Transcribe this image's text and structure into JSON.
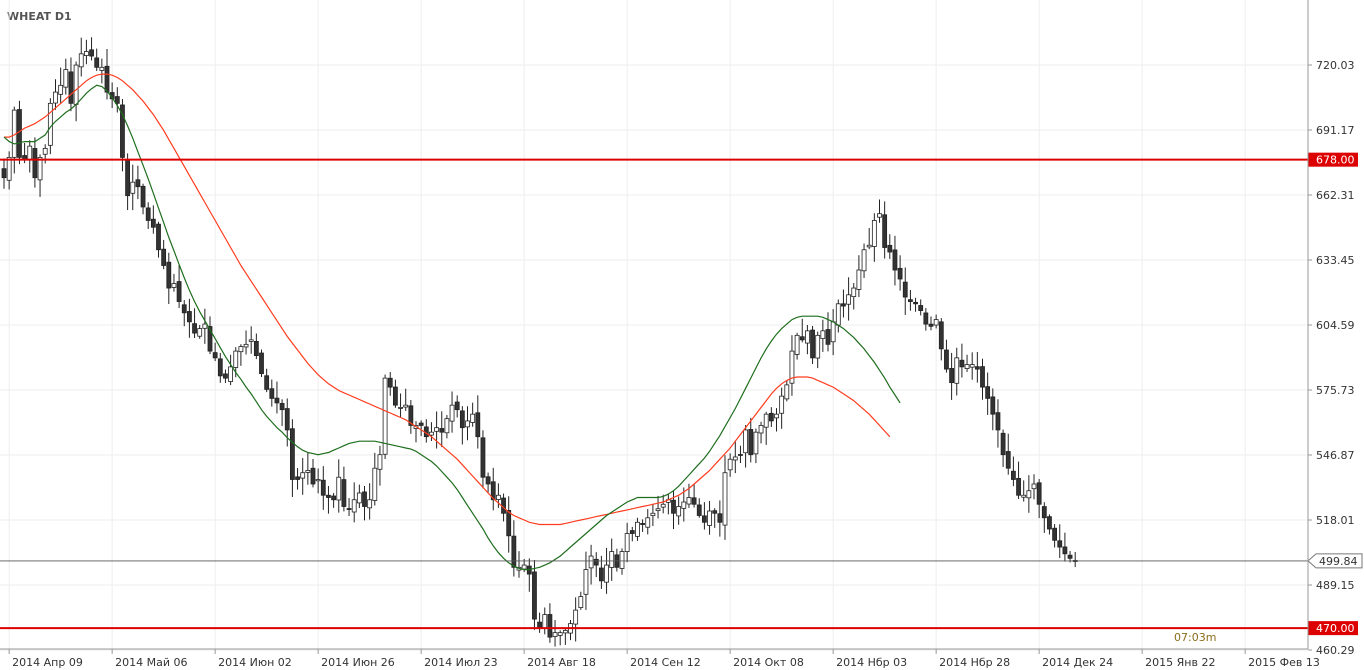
{
  "chart_data": {
    "type": "candlestick",
    "title": "WHEAT D1",
    "ylim": [
      455,
      735
    ],
    "y_ticks": [
      {
        "value": 720.03,
        "label": "720.03"
      },
      {
        "value": 691.17,
        "label": "691.17"
      },
      {
        "value": 662.31,
        "label": "662.31"
      },
      {
        "value": 633.45,
        "label": "633.45"
      },
      {
        "value": 604.59,
        "label": "604.59"
      },
      {
        "value": 575.73,
        "label": "575.73"
      },
      {
        "value": 546.87,
        "label": "546.87"
      },
      {
        "value": 518.01,
        "label": "518.01"
      },
      {
        "value": 489.15,
        "label": "489.15"
      },
      {
        "value": 460.29,
        "label": "460.29"
      }
    ],
    "x_labels": [
      {
        "bar": 1,
        "label": "2014 Апр 09"
      },
      {
        "bar": 21,
        "label": "2014 Май 06"
      },
      {
        "bar": 41,
        "label": "2014 Июн 02"
      },
      {
        "bar": 61,
        "label": "2014 Июн 26"
      },
      {
        "bar": 81,
        "label": "2014 Июл 23"
      },
      {
        "bar": 101,
        "label": "2014 Авг 18"
      },
      {
        "bar": 121,
        "label": "2014 Сен 12"
      },
      {
        "bar": 141,
        "label": "2014 Окт 08"
      },
      {
        "bar": 161,
        "label": "2014 Нбр 03"
      },
      {
        "bar": 181,
        "label": "2014 Нбр 28"
      },
      {
        "bar": 201,
        "label": "2014 Дек 24"
      },
      {
        "bar": 221,
        "label": "2015 Янв 22"
      },
      {
        "bar": 241,
        "label": "2015 Фев 13"
      }
    ],
    "x_range": [
      0,
      254
    ],
    "horizontal_levels": [
      {
        "value": 678.0,
        "label": "678.00",
        "color": "#dd0000"
      },
      {
        "value": 470.0,
        "label": "470.00",
        "color": "#dd0000"
      }
    ],
    "current_price": {
      "value": 499.84,
      "label": "499.84"
    },
    "timer": "07:03m",
    "close": [
      670,
      679,
      700,
      679,
      678,
      684,
      670,
      679,
      683,
      703,
      708,
      711,
      718,
      703,
      720,
      725,
      726,
      724,
      719,
      719,
      708,
      705,
      703,
      679,
      662,
      668,
      666,
      657,
      651,
      648,
      638,
      631,
      621,
      623,
      615,
      610,
      606,
      601,
      603,
      605,
      593,
      590,
      582,
      581,
      586,
      593,
      595,
      596,
      598,
      591,
      583,
      576,
      572,
      570,
      567,
      558,
      536,
      536,
      539,
      540,
      534,
      536,
      529,
      528,
      527,
      537,
      524,
      523,
      527,
      530,
      524,
      527,
      541,
      547,
      581,
      577,
      569,
      568,
      569,
      560,
      560,
      560,
      555,
      557,
      559,
      557,
      563,
      569,
      567,
      559,
      562,
      565,
      555,
      537,
      534,
      527,
      529,
      521,
      511,
      497,
      497,
      498,
      494,
      474,
      470,
      476,
      466,
      468,
      468,
      469,
      472,
      478,
      484,
      496,
      502,
      498,
      491,
      498,
      504,
      497,
      504,
      512,
      512,
      517,
      516,
      519,
      521,
      523,
      525,
      527,
      521,
      524,
      526,
      528,
      525,
      520,
      517,
      522,
      521,
      517,
      539,
      545,
      546,
      547,
      558,
      547,
      557,
      560,
      565,
      562,
      565,
      573,
      578,
      593,
      600,
      598,
      602,
      590,
      600,
      602,
      596,
      606,
      614,
      613,
      618,
      621,
      629,
      638,
      640,
      651,
      654,
      639,
      637,
      629,
      625,
      617,
      615,
      614,
      611,
      605,
      604,
      607,
      594,
      585,
      579,
      590,
      586,
      587,
      587,
      585,
      577,
      572,
      565,
      558,
      547,
      541,
      536,
      529,
      529,
      531,
      534,
      525,
      519,
      514,
      509,
      506,
      503,
      501,
      500
    ],
    "ma_green": {
      "name": "",
      "values": [
        688.0,
        686.0,
        685.0,
        685.5,
        686.0,
        686.0,
        686.0,
        687.5,
        689.0,
        692.5,
        695.0,
        697.0,
        699.0,
        700.5,
        702.5,
        705.0,
        707.5,
        709.5,
        711.0,
        710.5,
        708.5,
        705.5,
        702.0,
        698.0,
        693.0,
        687.5,
        681.5,
        675.5,
        669.5,
        663.0,
        656.5,
        650.0,
        643.5,
        637.5,
        631.5,
        625.5,
        620.0,
        615.0,
        610.5,
        606.5,
        602.5,
        598.5,
        594.5,
        590.5,
        587.0,
        583.5,
        580.5,
        577.0,
        574.0,
        570.5,
        567.0,
        564.0,
        561.5,
        559.0,
        557.0,
        554.5,
        552.5,
        550.5,
        549.0,
        548.0,
        547.5,
        547.0,
        547.5,
        548.0,
        549.0,
        550.0,
        551.0,
        552.0,
        552.5,
        553.0,
        553.0,
        553.0,
        553.0,
        552.5,
        552.0,
        551.5,
        551.0,
        550.5,
        550.0,
        549.5,
        548.5,
        547.0,
        545.5,
        544.0,
        542.0,
        539.5,
        537.0,
        534.5,
        531.5,
        528.0,
        524.5,
        521.0,
        517.5,
        514.0,
        510.0,
        506.5,
        503.5,
        501.0,
        499.0,
        497.5,
        496.5,
        496.0,
        496.0,
        496.5,
        497.0,
        498.0,
        499.0,
        500.5,
        502.0,
        504.0,
        506.0,
        508.0,
        510.0,
        512.0,
        514.0,
        516.0,
        518.0,
        520.0,
        521.5,
        523.0,
        524.5,
        526.0,
        527.0,
        528.0,
        528.0,
        528.0,
        528.0,
        528.0,
        528.5,
        529.5,
        531.0,
        533.0,
        535.5,
        538.0,
        540.5,
        543.0,
        545.5,
        548.5,
        552.0,
        555.5,
        559.5,
        563.5,
        567.5,
        572.0,
        576.5,
        581.0,
        585.5,
        590.0,
        594.0,
        597.5,
        600.5,
        603.0,
        605.0,
        607.0,
        608.0,
        608.5,
        608.5,
        608.5,
        608.5,
        608.0,
        607.0,
        606.0,
        604.5,
        603.0,
        601.0,
        599.0,
        596.5,
        594.0,
        591.0,
        588.0,
        584.5,
        581.0,
        577.0,
        573.5,
        570.0
      ]
    },
    "ma_red": {
      "name": "",
      "values": [
        688.0,
        688.0,
        689.0,
        690.5,
        692.0,
        693.0,
        694.0,
        695.5,
        697.0,
        699.0,
        701.0,
        703.0,
        705.0,
        707.0,
        709.0,
        711.0,
        713.0,
        714.5,
        715.5,
        716.0,
        716.0,
        715.5,
        714.5,
        713.0,
        711.0,
        709.0,
        706.5,
        704.0,
        701.0,
        698.0,
        694.5,
        691.0,
        687.0,
        683.0,
        679.0,
        675.0,
        671.0,
        667.0,
        663.0,
        659.0,
        655.0,
        651.0,
        647.0,
        643.0,
        639.0,
        635.0,
        631.0,
        627.5,
        624.0,
        620.5,
        617.0,
        613.5,
        610.0,
        606.5,
        603.0,
        599.5,
        596.5,
        593.5,
        590.5,
        587.5,
        585.0,
        582.5,
        580.5,
        578.5,
        577.0,
        575.5,
        574.5,
        573.5,
        572.5,
        571.5,
        570.5,
        569.5,
        568.5,
        567.5,
        566.5,
        565.5,
        564.5,
        563.5,
        562.5,
        561.0,
        559.5,
        558.0,
        556.5,
        555.0,
        553.0,
        551.0,
        549.0,
        547.0,
        545.0,
        542.5,
        540.0,
        537.5,
        535.0,
        532.5,
        530.0,
        527.5,
        525.5,
        523.5,
        521.5,
        520.0,
        519.0,
        518.0,
        517.0,
        516.5,
        516.0,
        516.0,
        516.0,
        516.0,
        516.0,
        516.5,
        517.0,
        517.5,
        518.0,
        518.5,
        519.0,
        519.5,
        520.0,
        520.5,
        521.0,
        521.5,
        522.0,
        522.5,
        523.0,
        523.5,
        524.0,
        524.5,
        525.0,
        525.5,
        526.0,
        527.0,
        528.0,
        529.0,
        530.5,
        532.0,
        534.0,
        536.0,
        538.0,
        540.0,
        542.5,
        545.0,
        547.5,
        550.0,
        553.0,
        556.0,
        559.0,
        562.0,
        565.0,
        568.0,
        571.0,
        574.0,
        576.5,
        578.5,
        580.0,
        581.0,
        581.5,
        581.5,
        581.5,
        581.0,
        580.0,
        579.0,
        578.0,
        577.0,
        575.5,
        574.0,
        572.5,
        571.0,
        569.0,
        567.0,
        565.0,
        562.5,
        560.0,
        557.5,
        555.0
      ]
    },
    "up_color": "#ffffff",
    "down_color": "#333333",
    "green_color": "#1e6e1e",
    "red_color": "#ff3c1e"
  }
}
